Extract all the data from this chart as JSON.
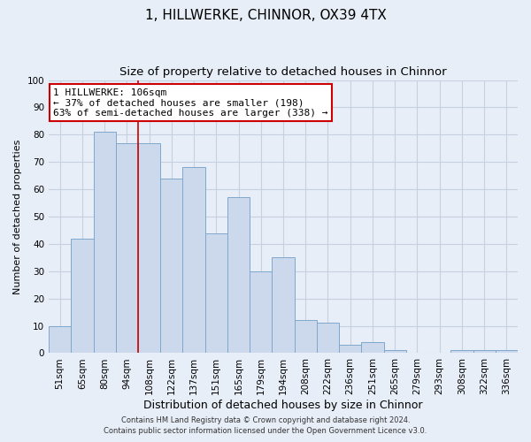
{
  "title": "1, HILLWERKE, CHINNOR, OX39 4TX",
  "subtitle": "Size of property relative to detached houses in Chinnor",
  "xlabel": "Distribution of detached houses by size in Chinnor",
  "ylabel": "Number of detached properties",
  "categories": [
    "51sqm",
    "65sqm",
    "80sqm",
    "94sqm",
    "108sqm",
    "122sqm",
    "137sqm",
    "151sqm",
    "165sqm",
    "179sqm",
    "194sqm",
    "208sqm",
    "222sqm",
    "236sqm",
    "251sqm",
    "265sqm",
    "279sqm",
    "293sqm",
    "308sqm",
    "322sqm",
    "336sqm"
  ],
  "values": [
    10,
    42,
    81,
    77,
    77,
    64,
    68,
    44,
    57,
    30,
    35,
    12,
    11,
    3,
    4,
    1,
    0,
    0,
    1,
    1,
    1
  ],
  "bar_color": "#ccd9ed",
  "bar_edge_color": "#7fa8cc",
  "vline_x_index": 4,
  "vline_color": "#cc0000",
  "annotation_text": "1 HILLWERKE: 106sqm\n← 37% of detached houses are smaller (198)\n63% of semi-detached houses are larger (338) →",
  "annotation_box_color": "#ffffff",
  "annotation_box_edge_color": "#cc0000",
  "ylim": [
    0,
    100
  ],
  "yticks": [
    0,
    10,
    20,
    30,
    40,
    50,
    60,
    70,
    80,
    90,
    100
  ],
  "grid_color": "#c5d0e0",
  "background_color": "#e8eef8",
  "plot_bg_color": "#e8eef8",
  "footer_line1": "Contains HM Land Registry data © Crown copyright and database right 2024.",
  "footer_line2": "Contains public sector information licensed under the Open Government Licence v3.0.",
  "title_fontsize": 11,
  "subtitle_fontsize": 9.5,
  "xlabel_fontsize": 9,
  "ylabel_fontsize": 8,
  "tick_fontsize": 7.5,
  "annotation_fontsize": 8,
  "footer_fontsize": 6
}
